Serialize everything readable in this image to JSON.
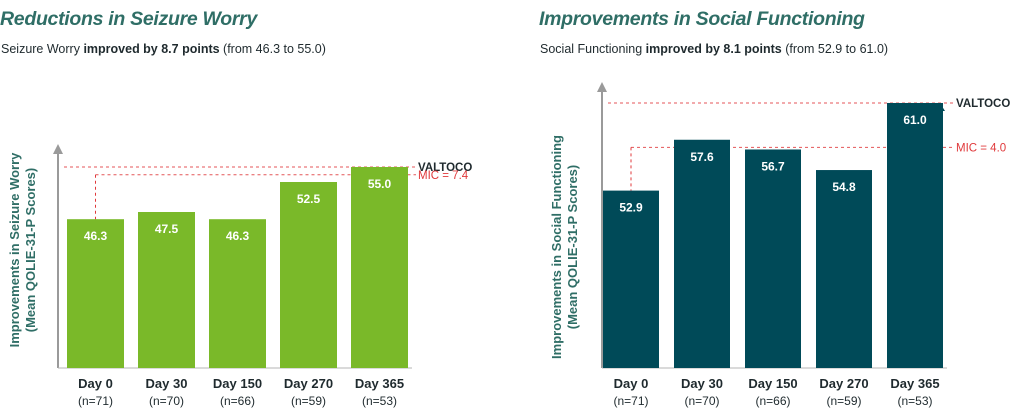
{
  "colors": {
    "title": "#2f6e66",
    "green": "#7ab929",
    "teal": "#004a58",
    "mic_red": "#e0393b",
    "axis_gray": "#9a9a9a",
    "text_dark": "#1f2a2e"
  },
  "chart_data": [
    {
      "type": "bar",
      "title": "Reductions in Seizure Worry",
      "subtitle": {
        "prefix": "Seizure Worry ",
        "emphasis": "improved by 8.7 points",
        "suffix": " (from 46.3 to 55.0)"
      },
      "ylabel_lines": [
        "Improvements in Seizure Worry",
        "(Mean QOLIE-31-P Scores)"
      ],
      "categories": [
        "Day 0",
        "Day 30",
        "Day 150",
        "Day 270",
        "Day 365"
      ],
      "n_labels": [
        "(n=71)",
        "(n=70)",
        "(n=66)",
        "(n=59)",
        "(n=53)"
      ],
      "values": [
        46.3,
        47.5,
        46.3,
        52.5,
        55.0
      ],
      "value_labels": [
        "46.3",
        "47.5",
        "46.3",
        "52.5",
        "55.0"
      ],
      "bar_color": "#7ab929",
      "arrow_color": "#7ab929",
      "ylim": [
        21.5,
        57.5
      ],
      "annotation": {
        "brand": "VALTOCO",
        "mic": "MIC = 7.4",
        "mic_value": 7.4,
        "baseline": 46.3,
        "endpoint": 55.0
      }
    },
    {
      "type": "bar",
      "title": "Improvements in Social Functioning",
      "subtitle": {
        "prefix": "Social Functioning ",
        "emphasis": "improved by 8.1 points",
        "suffix": " (from 52.9 to 61.0)"
      },
      "ylabel_lines": [
        "Improvements in Social Functioning",
        "(Mean QOLIE-31-P Scores)"
      ],
      "categories": [
        "Day 0",
        "Day 30",
        "Day 150",
        "Day 270",
        "Day 365"
      ],
      "n_labels": [
        "(n=71)",
        "(n=70)",
        "(n=66)",
        "(n=59)",
        "(n=53)"
      ],
      "values": [
        52.9,
        57.6,
        56.7,
        54.8,
        61.0
      ],
      "value_labels": [
        "52.9",
        "57.6",
        "56.7",
        "54.8",
        "61.0"
      ],
      "bar_color": "#004a58",
      "arrow_color": "#004a58",
      "ylim": [
        36.5,
        62.2
      ],
      "annotation": {
        "brand": "VALTOCO",
        "mic": "MIC = 4.0",
        "mic_value": 4.0,
        "baseline": 52.9,
        "endpoint": 61.0
      }
    }
  ]
}
